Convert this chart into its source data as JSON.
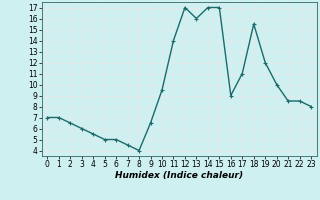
{
  "x": [
    0,
    1,
    2,
    3,
    4,
    5,
    6,
    7,
    8,
    9,
    10,
    11,
    12,
    13,
    14,
    15,
    16,
    17,
    18,
    19,
    20,
    21,
    22,
    23
  ],
  "y": [
    7,
    7,
    6.5,
    6,
    5.5,
    5,
    5,
    4.5,
    4,
    6.5,
    9.5,
    14,
    17,
    16,
    17,
    17,
    9,
    11,
    15.5,
    12,
    10,
    8.5,
    8.5,
    8
  ],
  "xlabel": "Humidex (Indice chaleur)",
  "xlim": [
    -0.5,
    23.5
  ],
  "ylim": [
    3.5,
    17.5
  ],
  "yticks": [
    4,
    5,
    6,
    7,
    8,
    9,
    10,
    11,
    12,
    13,
    14,
    15,
    16,
    17
  ],
  "xticks": [
    0,
    1,
    2,
    3,
    4,
    5,
    6,
    7,
    8,
    9,
    10,
    11,
    12,
    13,
    14,
    15,
    16,
    17,
    18,
    19,
    20,
    21,
    22,
    23
  ],
  "xtick_labels": [
    "0",
    "1",
    "2",
    "3",
    "4",
    "5",
    "6",
    "7",
    "8",
    "9",
    "10",
    "11",
    "12",
    "13",
    "14",
    "15",
    "16",
    "17",
    "18",
    "19",
    "20",
    "21",
    "22",
    "23"
  ],
  "line_color": "#1a6b6b",
  "marker": "+",
  "marker_size": 3.5,
  "line_width": 1.0,
  "bg_color": "#cff0f0",
  "grid_color": "#e8e8e8",
  "tick_fontsize": 5.5,
  "xlabel_fontsize": 6.5
}
